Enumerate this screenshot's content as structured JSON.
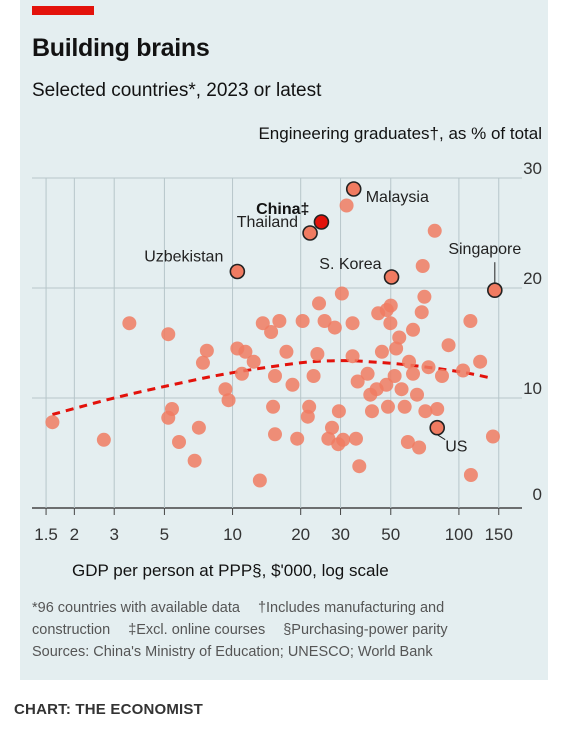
{
  "title": "Building brains",
  "subtitle": "Selected countries*, 2023 or latest",
  "footnotes": {
    "line1_a": "*96 countries with available data",
    "line1_b": "†Includes manufacturing and",
    "line2_a": "construction",
    "line2_b": "‡Excl. online courses",
    "line2_c": "§Purchasing-power parity",
    "line3": "Sources: China's Ministry of Education; UNESCO; World Bank"
  },
  "credit": "CHART: THE ECONOMIST",
  "colors": {
    "background": "#e4eef0",
    "accent_red": "#e3120b",
    "dot": "#f07b61",
    "highlight_dot": "#e3120b",
    "trend": "#e3120b",
    "grid": "#b7c6ca"
  },
  "chart_data": {
    "type": "scatter",
    "xlabel": "GDP per person at PPP§, $'000, log scale",
    "ylabel": "Engineering graduates†, as % of total",
    "x_scale": "log",
    "xlim": [
      1.3,
      190
    ],
    "ylim": [
      0,
      30
    ],
    "x_ticks": [
      1.5,
      2,
      3,
      5,
      10,
      20,
      30,
      50,
      100,
      150
    ],
    "x_tick_labels": [
      "1.5",
      "2",
      "3",
      "5",
      "10",
      "20",
      "30",
      "50",
      "100",
      "150"
    ],
    "y_ticks": [
      0,
      10,
      20,
      30
    ],
    "y_tick_labels": [
      "0",
      "10",
      "20",
      "30"
    ],
    "y_axis_side": "right",
    "grid": true,
    "points": [
      {
        "x": 1.6,
        "y": 7.8
      },
      {
        "x": 2.7,
        "y": 6.2
      },
      {
        "x": 3.5,
        "y": 16.8
      },
      {
        "x": 5.2,
        "y": 15.8
      },
      {
        "x": 5.4,
        "y": 9.0
      },
      {
        "x": 5.2,
        "y": 8.2
      },
      {
        "x": 5.8,
        "y": 6.0
      },
      {
        "x": 6.8,
        "y": 4.3
      },
      {
        "x": 7.1,
        "y": 7.3
      },
      {
        "x": 7.7,
        "y": 14.3
      },
      {
        "x": 7.4,
        "y": 13.2
      },
      {
        "x": 9.3,
        "y": 10.8
      },
      {
        "x": 9.6,
        "y": 9.8
      },
      {
        "x": 10.5,
        "y": 14.5
      },
      {
        "x": 11.4,
        "y": 14.2
      },
      {
        "x": 11.0,
        "y": 12.2
      },
      {
        "x": 12.4,
        "y": 13.3
      },
      {
        "x": 13.6,
        "y": 16.8
      },
      {
        "x": 14.8,
        "y": 16.0
      },
      {
        "x": 15.4,
        "y": 12.0
      },
      {
        "x": 16.1,
        "y": 17.0
      },
      {
        "x": 17.3,
        "y": 14.2
      },
      {
        "x": 15.1,
        "y": 9.2
      },
      {
        "x": 15.4,
        "y": 6.7
      },
      {
        "x": 13.2,
        "y": 2.5
      },
      {
        "x": 18.4,
        "y": 11.2
      },
      {
        "x": 19.3,
        "y": 6.3
      },
      {
        "x": 20.4,
        "y": 17.0
      },
      {
        "x": 21.5,
        "y": 8.3
      },
      {
        "x": 21.8,
        "y": 9.2
      },
      {
        "x": 22.8,
        "y": 12.0
      },
      {
        "x": 23.7,
        "y": 14.0
      },
      {
        "x": 24.1,
        "y": 18.6
      },
      {
        "x": 25.5,
        "y": 17.0
      },
      {
        "x": 26.5,
        "y": 6.3
      },
      {
        "x": 27.5,
        "y": 7.3
      },
      {
        "x": 28.3,
        "y": 16.4
      },
      {
        "x": 29.5,
        "y": 8.8
      },
      {
        "x": 30.4,
        "y": 19.5
      },
      {
        "x": 29.3,
        "y": 5.8
      },
      {
        "x": 30.8,
        "y": 6.2
      },
      {
        "x": 33.9,
        "y": 16.8
      },
      {
        "x": 33.9,
        "y": 13.8
      },
      {
        "x": 35.7,
        "y": 11.5
      },
      {
        "x": 35.1,
        "y": 6.3
      },
      {
        "x": 36.3,
        "y": 3.8
      },
      {
        "x": 39.5,
        "y": 12.2
      },
      {
        "x": 40.6,
        "y": 10.3
      },
      {
        "x": 41.3,
        "y": 8.8
      },
      {
        "x": 44.0,
        "y": 17.7
      },
      {
        "x": 43.3,
        "y": 10.8
      },
      {
        "x": 45.7,
        "y": 14.2
      },
      {
        "x": 47.8,
        "y": 11.2
      },
      {
        "x": 48.6,
        "y": 9.2
      },
      {
        "x": 49.8,
        "y": 16.8
      },
      {
        "x": 50.0,
        "y": 18.4
      },
      {
        "x": 52.0,
        "y": 12.0
      },
      {
        "x": 52.8,
        "y": 14.5
      },
      {
        "x": 54.5,
        "y": 15.5
      },
      {
        "x": 55.8,
        "y": 10.8
      },
      {
        "x": 57.6,
        "y": 9.2
      },
      {
        "x": 59.5,
        "y": 6.0
      },
      {
        "x": 60.2,
        "y": 13.3
      },
      {
        "x": 62.7,
        "y": 16.2
      },
      {
        "x": 62.7,
        "y": 12.2
      },
      {
        "x": 65.3,
        "y": 10.3
      },
      {
        "x": 66.7,
        "y": 5.5
      },
      {
        "x": 68.5,
        "y": 17.8
      },
      {
        "x": 70.4,
        "y": 19.2
      },
      {
        "x": 69.2,
        "y": 22.0
      },
      {
        "x": 71.1,
        "y": 8.8
      },
      {
        "x": 73.4,
        "y": 12.8
      },
      {
        "x": 78.2,
        "y": 25.2
      },
      {
        "x": 80.2,
        "y": 9.0
      },
      {
        "x": 84.2,
        "y": 12.0
      },
      {
        "x": 90.0,
        "y": 14.8
      },
      {
        "x": 104.3,
        "y": 12.5
      },
      {
        "x": 112.4,
        "y": 17.0
      },
      {
        "x": 113.0,
        "y": 3.0
      },
      {
        "x": 124.1,
        "y": 13.3
      },
      {
        "x": 141.4,
        "y": 6.5
      },
      {
        "x": 48.0,
        "y": 18.0
      },
      {
        "x": 31.9,
        "y": 27.5
      }
    ],
    "labelled_points": [
      {
        "label": "Uzbekistan",
        "x": 10.5,
        "y": 21.5,
        "highlight": false
      },
      {
        "label": "Thailand",
        "x": 22.0,
        "y": 25.0,
        "highlight": false
      },
      {
        "label": "China‡",
        "x": 24.7,
        "y": 26.0,
        "highlight": true
      },
      {
        "label": "Malaysia",
        "x": 34.3,
        "y": 29.0,
        "highlight": false
      },
      {
        "label": "S. Korea",
        "x": 50.4,
        "y": 21.0,
        "highlight": false
      },
      {
        "label": "Singapore",
        "x": 144.1,
        "y": 19.8,
        "highlight": false
      },
      {
        "label": "US",
        "x": 80.2,
        "y": 7.3,
        "highlight": false
      }
    ],
    "trend_line": {
      "style": "dashed",
      "x": [
        1.6,
        3,
        6,
        10,
        20,
        30,
        40,
        60,
        100,
        140
      ],
      "y": [
        8.5,
        10.0,
        11.4,
        12.3,
        13.2,
        13.4,
        13.3,
        13.0,
        12.4,
        11.8
      ]
    }
  }
}
